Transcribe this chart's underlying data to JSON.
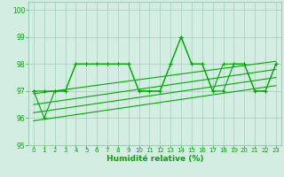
{
  "xlabel": "Humidité relative (%)",
  "xlim": [
    -0.5,
    23.5
  ],
  "ylim": [
    95,
    100.3
  ],
  "yticks": [
    95,
    96,
    97,
    98,
    99,
    100
  ],
  "xticks": [
    0,
    1,
    2,
    3,
    4,
    5,
    6,
    7,
    8,
    9,
    10,
    11,
    12,
    13,
    14,
    15,
    16,
    17,
    18,
    19,
    20,
    21,
    22,
    23
  ],
  "bg_color": "#d3ede3",
  "grid_color": "#a0ccbb",
  "line_color": "#00aa00",
  "series1": [
    97,
    97,
    97,
    97,
    98,
    98,
    98,
    98,
    98,
    98,
    97,
    97,
    97,
    98,
    99,
    98,
    98,
    97,
    98,
    98,
    98,
    97,
    97,
    98
  ],
  "series2": [
    97,
    96,
    97,
    97,
    98,
    98,
    98,
    98,
    98,
    98,
    97,
    97,
    97,
    98,
    99,
    98,
    98,
    97,
    97,
    98,
    98,
    97,
    97,
    98
  ],
  "trend1": [
    96.9,
    98.1
  ],
  "trend2": [
    96.5,
    97.8
  ],
  "trend3": [
    96.2,
    97.5
  ],
  "trend4": [
    95.9,
    97.2
  ]
}
